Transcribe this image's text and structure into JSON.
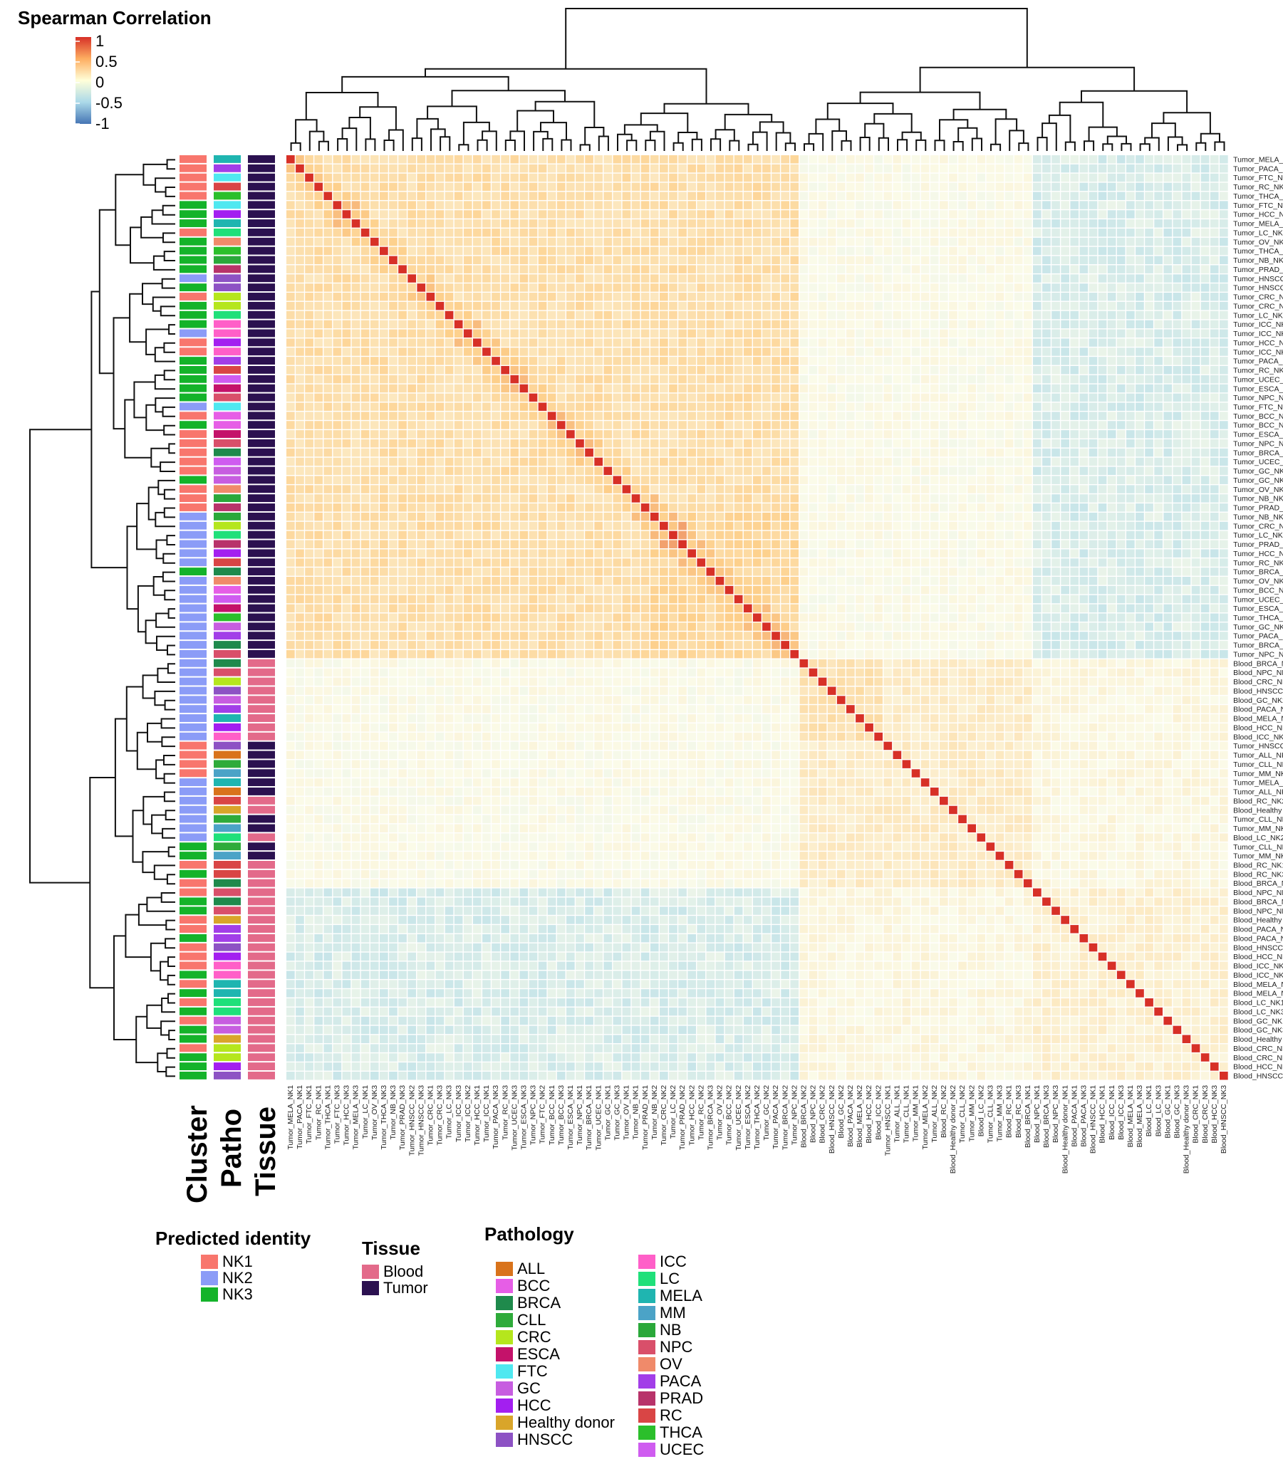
{
  "colorbar": {
    "title": "Spearman Correlation",
    "ticks": [
      "1",
      "0.5",
      "0",
      "-0.5",
      "-1"
    ],
    "tick_values": [
      1,
      0.5,
      0,
      -0.5,
      -1
    ]
  },
  "colors": {
    "high": "#d73027",
    "mid_high": "#fdae61",
    "mid": "#ffffbf",
    "mid_low": "#abd9e9",
    "low": "#4575b4",
    "NK1": "#f8766d",
    "NK2": "#8b9cf7",
    "NK3": "#14b32a",
    "Blood": "#e36a8a",
    "Tumor": "#2b1150"
  },
  "annotation_labels": {
    "cluster": "Cluster",
    "patho": "Patho",
    "tissue": "Tissue"
  },
  "legends": {
    "predicted_identity": {
      "title": "Predicted identity",
      "items": [
        "NK1",
        "NK2",
        "NK3"
      ]
    },
    "tissue": {
      "title": "Tissue",
      "items": [
        "Blood",
        "Tumor"
      ]
    },
    "pathology": {
      "title": "Pathology",
      "items": [
        {
          "label": "ALL",
          "color": "#d9731b"
        },
        {
          "label": "BCC",
          "color": "#e65ee6"
        },
        {
          "label": "BRCA",
          "color": "#1f8a4c"
        },
        {
          "label": "CLL",
          "color": "#2eab3a"
        },
        {
          "label": "CRC",
          "color": "#b5e61d"
        },
        {
          "label": "ESCA",
          "color": "#c4126a"
        },
        {
          "label": "FTC",
          "color": "#4fe8f0"
        },
        {
          "label": "GC",
          "color": "#c75de0"
        },
        {
          "label": "HCC",
          "color": "#a31ff0"
        },
        {
          "label": "Healthy donor",
          "color": "#d9a52a"
        },
        {
          "label": "HNSCC",
          "color": "#8d52c4"
        },
        {
          "label": "ICC",
          "color": "#ff5fc8"
        },
        {
          "label": "LC",
          "color": "#1fe07a"
        },
        {
          "label": "MELA",
          "color": "#1fb5b0"
        },
        {
          "label": "MM",
          "color": "#4ba3c7"
        },
        {
          "label": "NB",
          "color": "#2aa83a"
        },
        {
          "label": "NPC",
          "color": "#d94f6a"
        },
        {
          "label": "OV",
          "color": "#f08a6a"
        },
        {
          "label": "PACA",
          "color": "#a23ee8"
        },
        {
          "label": "PRAD",
          "color": "#b8336a"
        },
        {
          "label": "RC",
          "color": "#d94545"
        },
        {
          "label": "THCA",
          "color": "#2bbf2b"
        },
        {
          "label": "UCEC",
          "color": "#cf5cf0"
        }
      ]
    }
  },
  "chart_data": {
    "type": "heatmap",
    "title": "Spearman Correlation",
    "value_range": [
      -1,
      1
    ],
    "samples": [
      {
        "label": "Tumor_MELA_NK1",
        "cluster": "NK1",
        "patho": "MELA",
        "tissue": "Tumor"
      },
      {
        "label": "Tumor_PACA_NK1",
        "cluster": "NK1",
        "patho": "PACA",
        "tissue": "Tumor"
      },
      {
        "label": "Tumor_FTC_NK1",
        "cluster": "NK1",
        "patho": "FTC",
        "tissue": "Tumor"
      },
      {
        "label": "Tumor_RC_NK1",
        "cluster": "NK1",
        "patho": "RC",
        "tissue": "Tumor"
      },
      {
        "label": "Tumor_THCA_NK1",
        "cluster": "NK1",
        "patho": "THCA",
        "tissue": "Tumor"
      },
      {
        "label": "Tumor_FTC_NK3",
        "cluster": "NK3",
        "patho": "FTC",
        "tissue": "Tumor"
      },
      {
        "label": "Tumor_HCC_NK3",
        "cluster": "NK3",
        "patho": "HCC",
        "tissue": "Tumor"
      },
      {
        "label": "Tumor_MELA_NK3",
        "cluster": "NK3",
        "patho": "MELA",
        "tissue": "Tumor"
      },
      {
        "label": "Tumor_LC_NK1",
        "cluster": "NK1",
        "patho": "LC",
        "tissue": "Tumor"
      },
      {
        "label": "Tumor_OV_NK3",
        "cluster": "NK3",
        "patho": "OV",
        "tissue": "Tumor"
      },
      {
        "label": "Tumor_THCA_NK3",
        "cluster": "NK3",
        "patho": "THCA",
        "tissue": "Tumor"
      },
      {
        "label": "Tumor_NB_NK3",
        "cluster": "NK3",
        "patho": "NB",
        "tissue": "Tumor"
      },
      {
        "label": "Tumor_PRAD_NK3",
        "cluster": "NK3",
        "patho": "PRAD",
        "tissue": "Tumor"
      },
      {
        "label": "Tumor_HNSCC_NK2",
        "cluster": "NK2",
        "patho": "HNSCC",
        "tissue": "Tumor"
      },
      {
        "label": "Tumor_HNSCC_NK3",
        "cluster": "NK3",
        "patho": "HNSCC",
        "tissue": "Tumor"
      },
      {
        "label": "Tumor_CRC_NK1",
        "cluster": "NK1",
        "patho": "CRC",
        "tissue": "Tumor"
      },
      {
        "label": "Tumor_CRC_NK3",
        "cluster": "NK3",
        "patho": "CRC",
        "tissue": "Tumor"
      },
      {
        "label": "Tumor_LC_NK3",
        "cluster": "NK3",
        "patho": "LC",
        "tissue": "Tumor"
      },
      {
        "label": "Tumor_ICC_NK3",
        "cluster": "NK3",
        "patho": "ICC",
        "tissue": "Tumor"
      },
      {
        "label": "Tumor_ICC_NK2",
        "cluster": "NK2",
        "patho": "ICC",
        "tissue": "Tumor"
      },
      {
        "label": "Tumor_HCC_NK1",
        "cluster": "NK1",
        "patho": "HCC",
        "tissue": "Tumor"
      },
      {
        "label": "Tumor_ICC_NK1",
        "cluster": "NK1",
        "patho": "ICC",
        "tissue": "Tumor"
      },
      {
        "label": "Tumor_PACA_NK3",
        "cluster": "NK3",
        "patho": "PACA",
        "tissue": "Tumor"
      },
      {
        "label": "Tumor_RC_NK3",
        "cluster": "NK3",
        "patho": "RC",
        "tissue": "Tumor"
      },
      {
        "label": "Tumor_UCEC_NK3",
        "cluster": "NK3",
        "patho": "UCEC",
        "tissue": "Tumor"
      },
      {
        "label": "Tumor_ESCA_NK3",
        "cluster": "NK3",
        "patho": "ESCA",
        "tissue": "Tumor"
      },
      {
        "label": "Tumor_NPC_NK3",
        "cluster": "NK3",
        "patho": "NPC",
        "tissue": "Tumor"
      },
      {
        "label": "Tumor_FTC_NK2",
        "cluster": "NK2",
        "patho": "FTC",
        "tissue": "Tumor"
      },
      {
        "label": "Tumor_BCC_NK1",
        "cluster": "NK1",
        "patho": "BCC",
        "tissue": "Tumor"
      },
      {
        "label": "Tumor_BCC_NK3",
        "cluster": "NK3",
        "patho": "BCC",
        "tissue": "Tumor"
      },
      {
        "label": "Tumor_ESCA_NK1",
        "cluster": "NK1",
        "patho": "ESCA",
        "tissue": "Tumor"
      },
      {
        "label": "Tumor_NPC_NK1",
        "cluster": "NK1",
        "patho": "NPC",
        "tissue": "Tumor"
      },
      {
        "label": "Tumor_BRCA_NK1",
        "cluster": "NK1",
        "patho": "BRCA",
        "tissue": "Tumor"
      },
      {
        "label": "Tumor_UCEC_NK1",
        "cluster": "NK1",
        "patho": "UCEC",
        "tissue": "Tumor"
      },
      {
        "label": "Tumor_GC_NK1",
        "cluster": "NK1",
        "patho": "GC",
        "tissue": "Tumor"
      },
      {
        "label": "Tumor_GC_NK3",
        "cluster": "NK3",
        "patho": "GC",
        "tissue": "Tumor"
      },
      {
        "label": "Tumor_OV_NK1",
        "cluster": "NK1",
        "patho": "OV",
        "tissue": "Tumor"
      },
      {
        "label": "Tumor_NB_NK1",
        "cluster": "NK1",
        "patho": "NB",
        "tissue": "Tumor"
      },
      {
        "label": "Tumor_PRAD_NK1",
        "cluster": "NK1",
        "patho": "PRAD",
        "tissue": "Tumor"
      },
      {
        "label": "Tumor_NB_NK2",
        "cluster": "NK2",
        "patho": "NB",
        "tissue": "Tumor"
      },
      {
        "label": "Tumor_CRC_NK2",
        "cluster": "NK2",
        "patho": "CRC",
        "tissue": "Tumor"
      },
      {
        "label": "Tumor_LC_NK2",
        "cluster": "NK2",
        "patho": "LC",
        "tissue": "Tumor"
      },
      {
        "label": "Tumor_PRAD_NK2",
        "cluster": "NK2",
        "patho": "PRAD",
        "tissue": "Tumor"
      },
      {
        "label": "Tumor_HCC_NK2",
        "cluster": "NK2",
        "patho": "HCC",
        "tissue": "Tumor"
      },
      {
        "label": "Tumor_RC_NK2",
        "cluster": "NK2",
        "patho": "RC",
        "tissue": "Tumor"
      },
      {
        "label": "Tumor_BRCA_NK3",
        "cluster": "NK3",
        "patho": "BRCA",
        "tissue": "Tumor"
      },
      {
        "label": "Tumor_OV_NK2",
        "cluster": "NK2",
        "patho": "OV",
        "tissue": "Tumor"
      },
      {
        "label": "Tumor_BCC_NK2",
        "cluster": "NK2",
        "patho": "BCC",
        "tissue": "Tumor"
      },
      {
        "label": "Tumor_UCEC_NK2",
        "cluster": "NK2",
        "patho": "UCEC",
        "tissue": "Tumor"
      },
      {
        "label": "Tumor_ESCA_NK2",
        "cluster": "NK2",
        "patho": "ESCA",
        "tissue": "Tumor"
      },
      {
        "label": "Tumor_THCA_NK2",
        "cluster": "NK2",
        "patho": "THCA",
        "tissue": "Tumor"
      },
      {
        "label": "Tumor_GC_NK2",
        "cluster": "NK2",
        "patho": "GC",
        "tissue": "Tumor"
      },
      {
        "label": "Tumor_PACA_NK2",
        "cluster": "NK2",
        "patho": "PACA",
        "tissue": "Tumor"
      },
      {
        "label": "Tumor_BRCA_NK2",
        "cluster": "NK2",
        "patho": "BRCA",
        "tissue": "Tumor"
      },
      {
        "label": "Tumor_NPC_NK2",
        "cluster": "NK2",
        "patho": "NPC",
        "tissue": "Tumor"
      },
      {
        "label": "Blood_BRCA_NK2",
        "cluster": "NK2",
        "patho": "BRCA",
        "tissue": "Blood"
      },
      {
        "label": "Blood_NPC_NK2",
        "cluster": "NK2",
        "patho": "NPC",
        "tissue": "Blood"
      },
      {
        "label": "Blood_CRC_NK2",
        "cluster": "NK2",
        "patho": "CRC",
        "tissue": "Blood"
      },
      {
        "label": "Blood_HNSCC_NK2",
        "cluster": "NK2",
        "patho": "HNSCC",
        "tissue": "Blood"
      },
      {
        "label": "Blood_GC_NK2",
        "cluster": "NK2",
        "patho": "GC",
        "tissue": "Blood"
      },
      {
        "label": "Blood_PACA_NK2",
        "cluster": "NK2",
        "patho": "PACA",
        "tissue": "Blood"
      },
      {
        "label": "Blood_MELA_NK2",
        "cluster": "NK2",
        "patho": "MELA",
        "tissue": "Blood"
      },
      {
        "label": "Blood_HCC_NK2",
        "cluster": "NK2",
        "patho": "HCC",
        "tissue": "Blood"
      },
      {
        "label": "Blood_ICC_NK2",
        "cluster": "NK2",
        "patho": "ICC",
        "tissue": "Blood"
      },
      {
        "label": "Tumor_HNSCC_NK1",
        "cluster": "NK1",
        "patho": "HNSCC",
        "tissue": "Tumor"
      },
      {
        "label": "Tumor_ALL_NK1",
        "cluster": "NK1",
        "patho": "ALL",
        "tissue": "Tumor"
      },
      {
        "label": "Tumor_CLL_NK1",
        "cluster": "NK1",
        "patho": "CLL",
        "tissue": "Tumor"
      },
      {
        "label": "Tumor_MM_NK1",
        "cluster": "NK1",
        "patho": "MM",
        "tissue": "Tumor"
      },
      {
        "label": "Tumor_MELA_NK2",
        "cluster": "NK2",
        "patho": "MELA",
        "tissue": "Tumor"
      },
      {
        "label": "Tumor_ALL_NK2",
        "cluster": "NK2",
        "patho": "ALL",
        "tissue": "Tumor"
      },
      {
        "label": "Blood_RC_NK2",
        "cluster": "NK2",
        "patho": "RC",
        "tissue": "Blood"
      },
      {
        "label": "Blood_Healthy donor_NK2",
        "cluster": "NK2",
        "patho": "Healthy donor",
        "tissue": "Blood"
      },
      {
        "label": "Tumor_CLL_NK2",
        "cluster": "NK2",
        "patho": "CLL",
        "tissue": "Tumor"
      },
      {
        "label": "Tumor_MM_NK2",
        "cluster": "NK2",
        "patho": "MM",
        "tissue": "Tumor"
      },
      {
        "label": "Blood_LC_NK2",
        "cluster": "NK2",
        "patho": "LC",
        "tissue": "Blood"
      },
      {
        "label": "Tumor_CLL_NK3",
        "cluster": "NK3",
        "patho": "CLL",
        "tissue": "Tumor"
      },
      {
        "label": "Tumor_MM_NK3",
        "cluster": "NK3",
        "patho": "MM",
        "tissue": "Tumor"
      },
      {
        "label": "Blood_RC_NK1",
        "cluster": "NK1",
        "patho": "RC",
        "tissue": "Blood"
      },
      {
        "label": "Blood_RC_NK3",
        "cluster": "NK3",
        "patho": "RC",
        "tissue": "Blood"
      },
      {
        "label": "Blood_BRCA_NK1",
        "cluster": "NK1",
        "patho": "BRCA",
        "tissue": "Blood"
      },
      {
        "label": "Blood_NPC_NK1",
        "cluster": "NK1",
        "patho": "NPC",
        "tissue": "Blood"
      },
      {
        "label": "Blood_BRCA_NK3",
        "cluster": "NK3",
        "patho": "BRCA",
        "tissue": "Blood"
      },
      {
        "label": "Blood_NPC_NK3",
        "cluster": "NK3",
        "patho": "NPC",
        "tissue": "Blood"
      },
      {
        "label": "Blood_Healthy donor_NK1",
        "cluster": "NK1",
        "patho": "Healthy donor",
        "tissue": "Blood"
      },
      {
        "label": "Blood_PACA_NK1",
        "cluster": "NK1",
        "patho": "PACA",
        "tissue": "Blood"
      },
      {
        "label": "Blood_PACA_NK3",
        "cluster": "NK3",
        "patho": "PACA",
        "tissue": "Blood"
      },
      {
        "label": "Blood_HNSCC_NK1",
        "cluster": "NK1",
        "patho": "HNSCC",
        "tissue": "Blood"
      },
      {
        "label": "Blood_HCC_NK1",
        "cluster": "NK1",
        "patho": "HCC",
        "tissue": "Blood"
      },
      {
        "label": "Blood_ICC_NK1",
        "cluster": "NK1",
        "patho": "ICC",
        "tissue": "Blood"
      },
      {
        "label": "Blood_ICC_NK3",
        "cluster": "NK3",
        "patho": "ICC",
        "tissue": "Blood"
      },
      {
        "label": "Blood_MELA_NK1",
        "cluster": "NK1",
        "patho": "MELA",
        "tissue": "Blood"
      },
      {
        "label": "Blood_MELA_NK3",
        "cluster": "NK3",
        "patho": "MELA",
        "tissue": "Blood"
      },
      {
        "label": "Blood_LC_NK1",
        "cluster": "NK1",
        "patho": "LC",
        "tissue": "Blood"
      },
      {
        "label": "Blood_LC_NK3",
        "cluster": "NK3",
        "patho": "LC",
        "tissue": "Blood"
      },
      {
        "label": "Blood_GC_NK1",
        "cluster": "NK1",
        "patho": "GC",
        "tissue": "Blood"
      },
      {
        "label": "Blood_GC_NK3",
        "cluster": "NK3",
        "patho": "GC",
        "tissue": "Blood"
      },
      {
        "label": "Blood_Healthy donor_NK3",
        "cluster": "NK3",
        "patho": "Healthy donor",
        "tissue": "Blood"
      },
      {
        "label": "Blood_CRC_NK1",
        "cluster": "NK1",
        "patho": "CRC",
        "tissue": "Blood"
      },
      {
        "label": "Blood_CRC_NK3",
        "cluster": "NK3",
        "patho": "CRC",
        "tissue": "Blood"
      },
      {
        "label": "Blood_HCC_NK3",
        "cluster": "NK3",
        "patho": "HCC",
        "tissue": "Blood"
      },
      {
        "label": "Blood_HNSCC_NK3",
        "cluster": "NK3",
        "patho": "HNSCC",
        "tissue": "Blood"
      }
    ],
    "block_correlations": {
      "description_blocks": [
        {
          "rows": [
            0,
            54
          ],
          "cols": [
            0,
            54
          ],
          "value": 0.3
        },
        {
          "rows": [
            0,
            54
          ],
          "cols": [
            55,
            100
          ],
          "value": -0.2
        },
        {
          "rows": [
            55,
            79
          ],
          "cols": [
            55,
            79
          ],
          "value": 0.2
        },
        {
          "rows": [
            80,
            100
          ],
          "cols": [
            80,
            100
          ],
          "value": 0.1
        },
        {
          "rows": [
            80,
            100
          ],
          "cols": [
            0,
            54
          ],
          "value": -0.35
        }
      ],
      "diagonal": 1
    }
  }
}
